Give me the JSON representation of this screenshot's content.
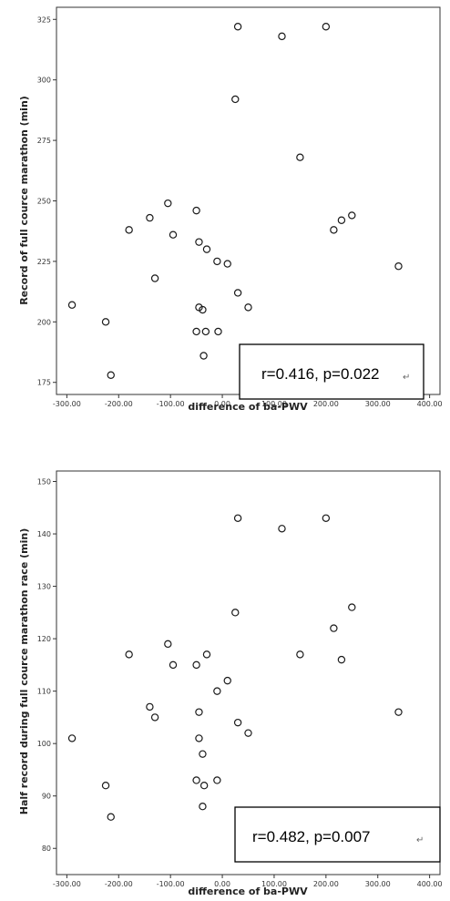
{
  "chart_data": [
    {
      "type": "scatter",
      "xlabel": "difference of ba-PWV",
      "ylabel": "Record of full cource marathon (min)",
      "xlim": [
        -320,
        420
      ],
      "ylim": [
        170,
        330
      ],
      "x_ticks": [
        "-300.00",
        "-200.00",
        "-100.00",
        "0.00",
        "100.00",
        "200.00",
        "300.00",
        "400.00"
      ],
      "y_ticks": [
        "325",
        "300",
        "275",
        "250",
        "225",
        "200",
        "175"
      ],
      "annotation": "r=0.416,  p=0.022",
      "annotation_mark": "↵",
      "points": [
        {
          "x": 30,
          "y": 322
        },
        {
          "x": 115,
          "y": 318
        },
        {
          "x": 200,
          "y": 322
        },
        {
          "x": 25,
          "y": 292
        },
        {
          "x": 150,
          "y": 268
        },
        {
          "x": -105,
          "y": 249
        },
        {
          "x": -50,
          "y": 246
        },
        {
          "x": -140,
          "y": 243
        },
        {
          "x": 250,
          "y": 244
        },
        {
          "x": 230,
          "y": 242
        },
        {
          "x": -180,
          "y": 238
        },
        {
          "x": 215,
          "y": 238
        },
        {
          "x": -95,
          "y": 236
        },
        {
          "x": -45,
          "y": 233
        },
        {
          "x": -30,
          "y": 230
        },
        {
          "x": -10,
          "y": 225
        },
        {
          "x": 10,
          "y": 224
        },
        {
          "x": 340,
          "y": 223
        },
        {
          "x": -130,
          "y": 218
        },
        {
          "x": 30,
          "y": 212
        },
        {
          "x": -290,
          "y": 207
        },
        {
          "x": -45,
          "y": 206
        },
        {
          "x": 50,
          "y": 206
        },
        {
          "x": -38,
          "y": 205
        },
        {
          "x": -225,
          "y": 200
        },
        {
          "x": -50,
          "y": 196
        },
        {
          "x": -32,
          "y": 196
        },
        {
          "x": -8,
          "y": 196
        },
        {
          "x": -36,
          "y": 186
        },
        {
          "x": -215,
          "y": 178
        }
      ]
    },
    {
      "type": "scatter",
      "xlabel": "difference of ba-PWV",
      "ylabel": "Half record during full cource marathon race (min)",
      "xlim": [
        -320,
        420
      ],
      "ylim": [
        75,
        152
      ],
      "x_ticks": [
        "-300.00",
        "-200.00",
        "-100.00",
        "0.00",
        "100.00",
        "200.00",
        "300.00",
        "400.00"
      ],
      "y_ticks": [
        "150",
        "140",
        "130",
        "120",
        "110",
        "100",
        "90",
        "80"
      ],
      "annotation": "r=0.482,  p=0.007",
      "annotation_mark": "↵",
      "points": [
        {
          "x": 30,
          "y": 143
        },
        {
          "x": 115,
          "y": 141
        },
        {
          "x": 200,
          "y": 143
        },
        {
          "x": 250,
          "y": 126
        },
        {
          "x": 25,
          "y": 125
        },
        {
          "x": 215,
          "y": 122
        },
        {
          "x": -105,
          "y": 119
        },
        {
          "x": -180,
          "y": 117
        },
        {
          "x": -30,
          "y": 117
        },
        {
          "x": 150,
          "y": 117
        },
        {
          "x": 230,
          "y": 116
        },
        {
          "x": -95,
          "y": 115
        },
        {
          "x": -50,
          "y": 115
        },
        {
          "x": 10,
          "y": 112
        },
        {
          "x": -10,
          "y": 110
        },
        {
          "x": -140,
          "y": 107
        },
        {
          "x": -45,
          "y": 106
        },
        {
          "x": 340,
          "y": 106
        },
        {
          "x": -130,
          "y": 105
        },
        {
          "x": 30,
          "y": 104
        },
        {
          "x": 50,
          "y": 102
        },
        {
          "x": -290,
          "y": 101
        },
        {
          "x": -45,
          "y": 101
        },
        {
          "x": -38,
          "y": 98
        },
        {
          "x": -50,
          "y": 93
        },
        {
          "x": -10,
          "y": 93
        },
        {
          "x": -225,
          "y": 92
        },
        {
          "x": -35,
          "y": 92
        },
        {
          "x": -38,
          "y": 88
        },
        {
          "x": -215,
          "y": 86
        }
      ]
    }
  ]
}
